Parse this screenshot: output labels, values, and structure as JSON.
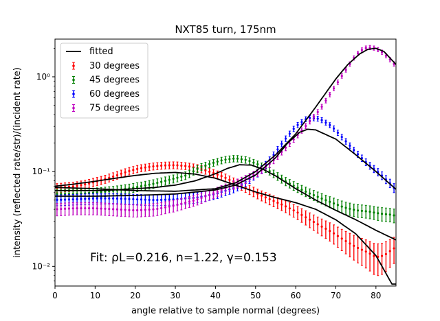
{
  "chart_data": {
    "type": "scatter",
    "title": "NXT85 turn, 175nm",
    "xlabel": "angle relative to sample normal (degrees)",
    "ylabel": "intensity (reflected rate/str)/(incident rate)",
    "xlim": [
      0,
      85
    ],
    "ylim": [
      0.0062,
      2.5
    ],
    "yscale": "log",
    "grid": false,
    "legend_position": "top-left",
    "x_ticks": [
      0,
      10,
      20,
      30,
      40,
      50,
      60,
      70,
      80
    ],
    "y_ticks": [
      {
        "value": 0.01,
        "label": "10⁻²"
      },
      {
        "value": 0.1,
        "label": "10⁻¹"
      },
      {
        "value": 1,
        "label": "10⁰"
      }
    ],
    "annotation": "Fit: ρL=0.216, n=1.22, γ=0.153",
    "fitted_label": "fitted",
    "series": [
      {
        "name": "30 degrees",
        "color": "#ff0000",
        "points": [
          [
            0,
            0.067
          ],
          [
            5,
            0.07
          ],
          [
            8,
            0.074
          ],
          [
            12,
            0.082
          ],
          [
            15,
            0.09
          ],
          [
            18,
            0.1
          ],
          [
            21,
            0.108
          ],
          [
            24,
            0.113
          ],
          [
            27,
            0.116
          ],
          [
            30,
            0.117
          ],
          [
            33,
            0.114
          ],
          [
            36,
            0.108
          ],
          [
            39,
            0.098
          ],
          [
            42,
            0.088
          ],
          [
            45,
            0.076
          ],
          [
            48,
            0.066
          ],
          [
            51,
            0.057
          ],
          [
            54,
            0.05
          ],
          [
            57,
            0.044
          ],
          [
            60,
            0.038
          ],
          [
            63,
            0.032
          ],
          [
            66,
            0.027
          ],
          [
            69,
            0.023
          ],
          [
            72,
            0.019
          ],
          [
            75,
            0.016
          ],
          [
            78,
            0.014
          ],
          [
            80,
            0.0125
          ],
          [
            82,
            0.013
          ],
          [
            84,
            0.015
          ],
          [
            85,
            0.016
          ]
        ],
        "fit": [
          [
            0,
            0.07
          ],
          [
            5,
            0.074
          ],
          [
            10,
            0.079
          ],
          [
            15,
            0.085
          ],
          [
            20,
            0.091
          ],
          [
            25,
            0.096
          ],
          [
            30,
            0.098
          ],
          [
            35,
            0.094
          ],
          [
            40,
            0.085
          ],
          [
            45,
            0.072
          ],
          [
            50,
            0.061
          ],
          [
            55,
            0.053
          ],
          [
            60,
            0.047
          ],
          [
            65,
            0.04
          ],
          [
            70,
            0.031
          ],
          [
            75,
            0.022
          ],
          [
            80,
            0.013
          ],
          [
            84,
            0.0065
          ]
        ]
      },
      {
        "name": "45 degrees",
        "color": "#008000",
        "points": [
          [
            0,
            0.058
          ],
          [
            5,
            0.058
          ],
          [
            10,
            0.06
          ],
          [
            15,
            0.063
          ],
          [
            20,
            0.068
          ],
          [
            25,
            0.075
          ],
          [
            30,
            0.085
          ],
          [
            33,
            0.092
          ],
          [
            36,
            0.11
          ],
          [
            39,
            0.122
          ],
          [
            42,
            0.133
          ],
          [
            45,
            0.138
          ],
          [
            48,
            0.132
          ],
          [
            51,
            0.117
          ],
          [
            54,
            0.098
          ],
          [
            57,
            0.081
          ],
          [
            60,
            0.069
          ],
          [
            63,
            0.06
          ],
          [
            66,
            0.053
          ],
          [
            69,
            0.047
          ],
          [
            72,
            0.042
          ],
          [
            75,
            0.039
          ],
          [
            78,
            0.038
          ],
          [
            81,
            0.036
          ],
          [
            84,
            0.035
          ],
          [
            85,
            0.034
          ]
        ],
        "fit": [
          [
            0,
            0.063
          ],
          [
            5,
            0.063
          ],
          [
            10,
            0.063
          ],
          [
            15,
            0.064
          ],
          [
            20,
            0.066
          ],
          [
            25,
            0.068
          ],
          [
            30,
            0.072
          ],
          [
            35,
            0.08
          ],
          [
            40,
            0.095
          ],
          [
            43,
            0.108
          ],
          [
            46,
            0.118
          ],
          [
            49,
            0.117
          ],
          [
            52,
            0.105
          ],
          [
            55,
            0.09
          ],
          [
            60,
            0.066
          ],
          [
            65,
            0.05
          ],
          [
            70,
            0.039
          ],
          [
            75,
            0.031
          ],
          [
            80,
            0.024
          ],
          [
            85,
            0.019
          ]
        ]
      },
      {
        "name": "60 degrees",
        "color": "#0000ff",
        "points": [
          [
            0,
            0.05
          ],
          [
            5,
            0.051
          ],
          [
            10,
            0.052
          ],
          [
            15,
            0.052
          ],
          [
            20,
            0.051
          ],
          [
            25,
            0.05
          ],
          [
            30,
            0.051
          ],
          [
            35,
            0.053
          ],
          [
            40,
            0.058
          ],
          [
            45,
            0.068
          ],
          [
            48,
            0.08
          ],
          [
            51,
            0.1
          ],
          [
            54,
            0.14
          ],
          [
            57,
            0.21
          ],
          [
            60,
            0.3
          ],
          [
            63,
            0.37
          ],
          [
            66,
            0.36
          ],
          [
            69,
            0.3
          ],
          [
            72,
            0.22
          ],
          [
            75,
            0.16
          ],
          [
            78,
            0.12
          ],
          [
            81,
            0.095
          ],
          [
            84,
            0.072
          ],
          [
            85,
            0.063
          ]
        ],
        "fit": [
          [
            0,
            0.055
          ],
          [
            10,
            0.055
          ],
          [
            20,
            0.056
          ],
          [
            30,
            0.058
          ],
          [
            40,
            0.064
          ],
          [
            45,
            0.072
          ],
          [
            50,
            0.092
          ],
          [
            55,
            0.14
          ],
          [
            58,
            0.2
          ],
          [
            61,
            0.26
          ],
          [
            63,
            0.28
          ],
          [
            65,
            0.275
          ],
          [
            70,
            0.22
          ],
          [
            75,
            0.15
          ],
          [
            80,
            0.1
          ],
          [
            85,
            0.065
          ]
        ]
      },
      {
        "name": "75 degrees",
        "color": "#bf00bf",
        "points": [
          [
            0,
            0.04
          ],
          [
            5,
            0.041
          ],
          [
            10,
            0.041
          ],
          [
            15,
            0.04
          ],
          [
            20,
            0.039
          ],
          [
            25,
            0.04
          ],
          [
            30,
            0.044
          ],
          [
            35,
            0.05
          ],
          [
            40,
            0.06
          ],
          [
            45,
            0.074
          ],
          [
            48,
            0.085
          ],
          [
            51,
            0.1
          ],
          [
            54,
            0.125
          ],
          [
            57,
            0.17
          ],
          [
            60,
            0.23
          ],
          [
            63,
            0.32
          ],
          [
            66,
            0.45
          ],
          [
            69,
            0.7
          ],
          [
            72,
            1.1
          ],
          [
            75,
            1.7
          ],
          [
            77,
            2.0
          ],
          [
            79,
            2.05
          ],
          [
            81,
            1.9
          ],
          [
            83,
            1.6
          ],
          [
            85,
            1.3
          ]
        ],
        "fit": [
          [
            0,
            0.068
          ],
          [
            10,
            0.066
          ],
          [
            20,
            0.063
          ],
          [
            30,
            0.062
          ],
          [
            40,
            0.066
          ],
          [
            45,
            0.076
          ],
          [
            50,
            0.1
          ],
          [
            55,
            0.15
          ],
          [
            60,
            0.25
          ],
          [
            65,
            0.48
          ],
          [
            70,
            0.95
          ],
          [
            73,
            1.35
          ],
          [
            76,
            1.75
          ],
          [
            78,
            1.95
          ],
          [
            80,
            2.0
          ],
          [
            82,
            1.85
          ],
          [
            85,
            1.35
          ]
        ]
      }
    ]
  }
}
